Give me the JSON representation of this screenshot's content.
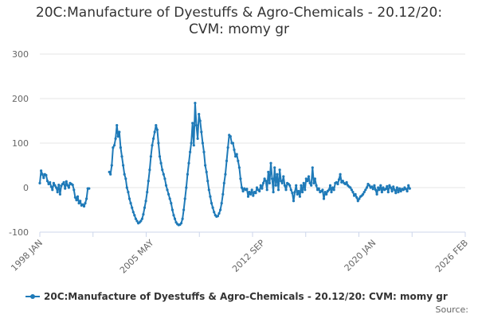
{
  "title_lines": [
    "20C:Manufacture of Dyestuffs & Agro-Chemicals - 20.12/20:",
    "CVM: momy gr"
  ],
  "source_label": "Source:",
  "colors": {
    "series": "#1f7ab8",
    "grid": "#e6e6e6",
    "axis": "#ccd6eb"
  },
  "chart_data": {
    "type": "line",
    "title": "20C:Manufacture of Dyestuffs & Agro-Chemicals - 20.12/20: CVM: momy gr",
    "xlabel": "",
    "ylabel": "",
    "ylim": [
      -100,
      300
    ],
    "yticks": [
      -100,
      0,
      100,
      200,
      300
    ],
    "xlim": [
      "1998-01",
      "2026-02"
    ],
    "xticks": [
      {
        "label": "1998 JAN",
        "x": "1998-01"
      },
      {
        "label": "2005 MAY",
        "x": "2005-05"
      },
      {
        "label": "2012 SEP",
        "x": "2012-09"
      },
      {
        "label": "2020 JAN",
        "x": "2020-01"
      },
      {
        "label": "2026 FEB",
        "x": "2026-02"
      }
    ],
    "grid": "horizontal",
    "legend": "bottom",
    "series": [
      {
        "name": "20C:Manufacture of Dyestuffs & Agro-Chemicals - 20.12/20: CVM: momy gr",
        "points": [
          [
            "1998-01",
            10
          ],
          [
            "1998-02",
            38
          ],
          [
            "1998-03",
            30
          ],
          [
            "1998-04",
            22
          ],
          [
            "1998-05",
            30
          ],
          [
            "1998-06",
            28
          ],
          [
            "1998-07",
            15
          ],
          [
            "1998-08",
            8
          ],
          [
            "1998-09",
            12
          ],
          [
            "1998-10",
            2
          ],
          [
            "1998-11",
            -5
          ],
          [
            "1998-12",
            10
          ],
          [
            "1999-01",
            5
          ],
          [
            "1999-02",
            0
          ],
          [
            "1999-03",
            -10
          ],
          [
            "1999-04",
            6
          ],
          [
            "1999-05",
            -15
          ],
          [
            "1999-06",
            4
          ],
          [
            "1999-07",
            8
          ],
          [
            "1999-08",
            12
          ],
          [
            "1999-09",
            -2
          ],
          [
            "1999-10",
            14
          ],
          [
            "1999-11",
            5
          ],
          [
            "1999-12",
            0
          ],
          [
            "2000-01",
            10
          ],
          [
            "2000-02",
            8
          ],
          [
            "2000-03",
            6
          ],
          [
            "2000-04",
            -5
          ],
          [
            "2000-05",
            -22
          ],
          [
            "2000-06",
            -28
          ],
          [
            "2000-07",
            -20
          ],
          [
            "2000-08",
            -35
          ],
          [
            "2000-09",
            -30
          ],
          [
            "2000-10",
            -40
          ],
          [
            "2000-11",
            -38
          ],
          [
            "2000-12",
            -42
          ],
          [
            "2001-01",
            -35
          ],
          [
            "2001-02",
            -25
          ],
          [
            "2001-03",
            -2
          ],
          [
            "2001-04",
            -2
          ],
          [
            "2001-05",
            null
          ],
          [
            "2001-06",
            null
          ],
          [
            "2001-07",
            null
          ],
          [
            "2001-08",
            null
          ],
          [
            "2001-09",
            null
          ],
          [
            "2001-10",
            null
          ],
          [
            "2001-11",
            null
          ],
          [
            "2001-12",
            null
          ],
          [
            "2002-01",
            null
          ],
          [
            "2002-02",
            null
          ],
          [
            "2002-03",
            null
          ],
          [
            "2002-04",
            null
          ],
          [
            "2002-05",
            null
          ],
          [
            "2002-06",
            null
          ],
          [
            "2002-07",
            null
          ],
          [
            "2002-08",
            35
          ],
          [
            "2002-09",
            30
          ],
          [
            "2002-10",
            50
          ],
          [
            "2002-11",
            90
          ],
          [
            "2002-12",
            95
          ],
          [
            "2003-01",
            110
          ],
          [
            "2003-02",
            140
          ],
          [
            "2003-03",
            115
          ],
          [
            "2003-04",
            125
          ],
          [
            "2003-05",
            90
          ],
          [
            "2003-06",
            70
          ],
          [
            "2003-07",
            50
          ],
          [
            "2003-08",
            30
          ],
          [
            "2003-09",
            20
          ],
          [
            "2003-10",
            0
          ],
          [
            "2003-11",
            -10
          ],
          [
            "2003-12",
            -25
          ],
          [
            "2004-01",
            -35
          ],
          [
            "2004-02",
            -45
          ],
          [
            "2004-03",
            -55
          ],
          [
            "2004-04",
            -62
          ],
          [
            "2004-05",
            -70
          ],
          [
            "2004-06",
            -75
          ],
          [
            "2004-07",
            -80
          ],
          [
            "2004-08",
            -78
          ],
          [
            "2004-09",
            -75
          ],
          [
            "2004-10",
            -70
          ],
          [
            "2004-11",
            -60
          ],
          [
            "2004-12",
            -45
          ],
          [
            "2005-01",
            -30
          ],
          [
            "2005-02",
            -10
          ],
          [
            "2005-03",
            15
          ],
          [
            "2005-04",
            40
          ],
          [
            "2005-05",
            70
          ],
          [
            "2005-06",
            95
          ],
          [
            "2005-07",
            110
          ],
          [
            "2005-08",
            125
          ],
          [
            "2005-09",
            140
          ],
          [
            "2005-10",
            130
          ],
          [
            "2005-11",
            100
          ],
          [
            "2005-12",
            70
          ],
          [
            "2006-01",
            55
          ],
          [
            "2006-02",
            40
          ],
          [
            "2006-03",
            30
          ],
          [
            "2006-04",
            20
          ],
          [
            "2006-05",
            5
          ],
          [
            "2006-06",
            -5
          ],
          [
            "2006-07",
            -15
          ],
          [
            "2006-08",
            -25
          ],
          [
            "2006-09",
            -35
          ],
          [
            "2006-10",
            -50
          ],
          [
            "2006-11",
            -62
          ],
          [
            "2006-12",
            -70
          ],
          [
            "2007-01",
            -78
          ],
          [
            "2007-02",
            -82
          ],
          [
            "2007-03",
            -84
          ],
          [
            "2007-04",
            -83
          ],
          [
            "2007-05",
            -80
          ],
          [
            "2007-06",
            -70
          ],
          [
            "2007-07",
            -50
          ],
          [
            "2007-08",
            -25
          ],
          [
            "2007-09",
            0
          ],
          [
            "2007-10",
            30
          ],
          [
            "2007-11",
            55
          ],
          [
            "2007-12",
            80
          ],
          [
            "2008-01",
            100
          ],
          [
            "2008-02",
            145
          ],
          [
            "2008-03",
            95
          ],
          [
            "2008-04",
            190
          ],
          [
            "2008-05",
            140
          ],
          [
            "2008-06",
            110
          ],
          [
            "2008-07",
            165
          ],
          [
            "2008-08",
            150
          ],
          [
            "2008-09",
            125
          ],
          [
            "2008-10",
            100
          ],
          [
            "2008-11",
            80
          ],
          [
            "2008-12",
            50
          ],
          [
            "2009-01",
            35
          ],
          [
            "2009-02",
            15
          ],
          [
            "2009-03",
            -5
          ],
          [
            "2009-04",
            -20
          ],
          [
            "2009-05",
            -35
          ],
          [
            "2009-06",
            -45
          ],
          [
            "2009-07",
            -55
          ],
          [
            "2009-08",
            -62
          ],
          [
            "2009-09",
            -65
          ],
          [
            "2009-10",
            -64
          ],
          [
            "2009-11",
            -58
          ],
          [
            "2009-12",
            -50
          ],
          [
            "2010-01",
            -35
          ],
          [
            "2010-02",
            -15
          ],
          [
            "2010-03",
            10
          ],
          [
            "2010-04",
            30
          ],
          [
            "2010-05",
            60
          ],
          [
            "2010-06",
            90
          ],
          [
            "2010-07",
            118
          ],
          [
            "2010-08",
            115
          ],
          [
            "2010-09",
            100
          ],
          [
            "2010-10",
            100
          ],
          [
            "2010-11",
            85
          ],
          [
            "2010-12",
            70
          ],
          [
            "2011-01",
            75
          ],
          [
            "2011-02",
            60
          ],
          [
            "2011-03",
            45
          ],
          [
            "2011-04",
            20
          ],
          [
            "2011-05",
            0
          ],
          [
            "2011-06",
            -8
          ],
          [
            "2011-07",
            -2
          ],
          [
            "2011-08",
            -5
          ],
          [
            "2011-09",
            -3
          ],
          [
            "2011-10",
            -20
          ],
          [
            "2011-11",
            -10
          ],
          [
            "2011-12",
            -15
          ],
          [
            "2012-01",
            -5
          ],
          [
            "2012-02",
            -18
          ],
          [
            "2012-03",
            -10
          ],
          [
            "2012-04",
            -12
          ],
          [
            "2012-05",
            0
          ],
          [
            "2012-06",
            -5
          ],
          [
            "2012-07",
            -8
          ],
          [
            "2012-08",
            5
          ],
          [
            "2012-09",
            -2
          ],
          [
            "2012-10",
            10
          ],
          [
            "2012-11",
            20
          ],
          [
            "2012-12",
            15
          ],
          [
            "2013-01",
            -5
          ],
          [
            "2013-02",
            35
          ],
          [
            "2013-03",
            10
          ],
          [
            "2013-04",
            55
          ],
          [
            "2013-05",
            20
          ],
          [
            "2013-06",
            -10
          ],
          [
            "2013-07",
            45
          ],
          [
            "2013-08",
            5
          ],
          [
            "2013-09",
            30
          ],
          [
            "2013-10",
            -5
          ],
          [
            "2013-11",
            40
          ],
          [
            "2013-12",
            15
          ],
          [
            "2014-01",
            10
          ],
          [
            "2014-02",
            25
          ],
          [
            "2014-03",
            5
          ],
          [
            "2014-04",
            -5
          ],
          [
            "2014-05",
            10
          ],
          [
            "2014-06",
            8
          ],
          [
            "2014-07",
            5
          ],
          [
            "2014-08",
            -5
          ],
          [
            "2014-09",
            -12
          ],
          [
            "2014-10",
            -30
          ],
          [
            "2014-11",
            -10
          ],
          [
            "2014-12",
            5
          ],
          [
            "2015-01",
            -15
          ],
          [
            "2015-02",
            -8
          ],
          [
            "2015-03",
            -20
          ],
          [
            "2015-04",
            5
          ],
          [
            "2015-05",
            -10
          ],
          [
            "2015-06",
            10
          ],
          [
            "2015-07",
            -5
          ],
          [
            "2015-08",
            20
          ],
          [
            "2015-09",
            15
          ],
          [
            "2015-10",
            25
          ],
          [
            "2015-11",
            10
          ],
          [
            "2015-12",
            5
          ],
          [
            "2016-01",
            45
          ],
          [
            "2016-02",
            10
          ],
          [
            "2016-03",
            20
          ],
          [
            "2016-04",
            5
          ],
          [
            "2016-05",
            -5
          ],
          [
            "2016-06",
            -2
          ],
          [
            "2016-07",
            -10
          ],
          [
            "2016-08",
            -8
          ],
          [
            "2016-09",
            -5
          ],
          [
            "2016-10",
            -25
          ],
          [
            "2016-11",
            -10
          ],
          [
            "2016-12",
            -15
          ],
          [
            "2017-01",
            -8
          ],
          [
            "2017-02",
            -5
          ],
          [
            "2017-03",
            5
          ],
          [
            "2017-04",
            -10
          ],
          [
            "2017-05",
            0
          ],
          [
            "2017-06",
            -5
          ],
          [
            "2017-07",
            10
          ],
          [
            "2017-08",
            12
          ],
          [
            "2017-09",
            8
          ],
          [
            "2017-10",
            18
          ],
          [
            "2017-11",
            30
          ],
          [
            "2017-12",
            12
          ],
          [
            "2018-01",
            15
          ],
          [
            "2018-02",
            10
          ],
          [
            "2018-03",
            8
          ],
          [
            "2018-04",
            12
          ],
          [
            "2018-05",
            5
          ],
          [
            "2018-06",
            2
          ],
          [
            "2018-07",
            0
          ],
          [
            "2018-08",
            -5
          ],
          [
            "2018-09",
            -10
          ],
          [
            "2018-10",
            -18
          ],
          [
            "2018-11",
            -15
          ],
          [
            "2018-12",
            -22
          ],
          [
            "2019-01",
            -30
          ],
          [
            "2019-02",
            -25
          ],
          [
            "2019-03",
            -20
          ],
          [
            "2019-04",
            -18
          ],
          [
            "2019-05",
            -15
          ],
          [
            "2019-06",
            -10
          ],
          [
            "2019-07",
            -5
          ],
          [
            "2019-08",
            0
          ],
          [
            "2019-09",
            8
          ],
          [
            "2019-10",
            5
          ],
          [
            "2019-11",
            0
          ],
          [
            "2019-12",
            2
          ],
          [
            "2020-01",
            -3
          ],
          [
            "2020-02",
            5
          ],
          [
            "2020-03",
            -5
          ],
          [
            "2020-04",
            -15
          ],
          [
            "2020-05",
            0
          ],
          [
            "2020-06",
            -5
          ],
          [
            "2020-07",
            5
          ],
          [
            "2020-08",
            -10
          ],
          [
            "2020-09",
            0
          ],
          [
            "2020-10",
            -5
          ],
          [
            "2020-11",
            -3
          ],
          [
            "2020-12",
            3
          ],
          [
            "2021-01",
            -10
          ],
          [
            "2021-02",
            5
          ],
          [
            "2021-03",
            0
          ],
          [
            "2021-04",
            -8
          ],
          [
            "2021-05",
            2
          ],
          [
            "2021-06",
            -5
          ],
          [
            "2021-07",
            -12
          ],
          [
            "2021-08",
            0
          ],
          [
            "2021-09",
            -10
          ],
          [
            "2021-10",
            -2
          ],
          [
            "2021-11",
            -8
          ],
          [
            "2021-12",
            -3
          ],
          [
            "2022-01",
            -5
          ],
          [
            "2022-02",
            0
          ],
          [
            "2022-03",
            -3
          ],
          [
            "2022-04",
            -8
          ],
          [
            "2022-05",
            5
          ],
          [
            "2022-06",
            -2
          ]
        ]
      }
    ]
  }
}
